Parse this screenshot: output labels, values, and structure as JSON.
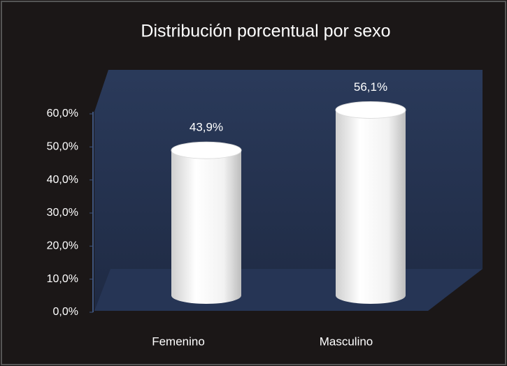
{
  "chart_data": {
    "type": "bar",
    "title": "Distribución porcentual por sexo",
    "categories": [
      "Femenino",
      "Masculino"
    ],
    "values": [
      43.9,
      56.1
    ],
    "value_labels": [
      "43,9%",
      "56,1%"
    ],
    "color": "#ffffff",
    "ylim": [
      0,
      60
    ],
    "yticks": [
      {
        "value": 0,
        "label": "0,0%"
      },
      {
        "value": 10,
        "label": "10,0%"
      },
      {
        "value": 20,
        "label": "20,0%"
      },
      {
        "value": 30,
        "label": "30,0%"
      },
      {
        "value": 40,
        "label": "40,0%"
      },
      {
        "value": 50,
        "label": "50,0%"
      },
      {
        "value": 60,
        "label": "60,0%"
      }
    ]
  }
}
